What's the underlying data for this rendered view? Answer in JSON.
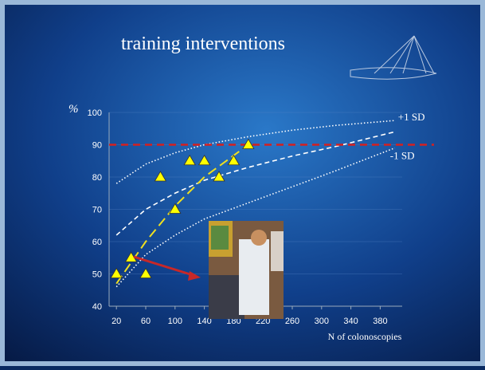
{
  "chart_data": {
    "type": "scatter",
    "title": "training interventions",
    "ylabel": "%",
    "xlabel": "N of colonoscopies",
    "xlim": [
      10,
      410
    ],
    "xticks": [
      20,
      60,
      100,
      140,
      180,
      220,
      260,
      300,
      340,
      380
    ],
    "ylim": [
      40,
      100
    ],
    "yticks": [
      40,
      50,
      60,
      70,
      80,
      90,
      100
    ],
    "grid": true,
    "reference_line": {
      "value": 90,
      "color": "#d42020"
    },
    "curves": [
      {
        "name": "+1 SD",
        "color": "#ffffff",
        "style": "dotted",
        "x": [
          20,
          60,
          100,
          140,
          200,
          260,
          320,
          400
        ],
        "values": [
          78,
          84,
          87.5,
          90,
          92.5,
          94.5,
          96,
          97.5
        ]
      },
      {
        "color": "#ffffff",
        "style": "dashed",
        "x": [
          20,
          60,
          100,
          140,
          200,
          260,
          320,
          400
        ],
        "values": [
          62,
          70,
          75,
          79,
          83,
          86.5,
          89.5,
          94
        ]
      },
      {
        "name": "-1 SD",
        "color": "#ffffff",
        "style": "dotted",
        "x": [
          20,
          60,
          100,
          140,
          200,
          260,
          320,
          400
        ],
        "values": [
          46,
          56,
          62,
          67,
          72,
          77,
          82,
          89
        ]
      },
      {
        "color": "#f0e020",
        "style": "longdash",
        "x": [
          20,
          60,
          100,
          140,
          200
        ],
        "values": [
          47,
          60,
          71,
          80,
          90
        ]
      }
    ],
    "points": {
      "color": "#ffff00",
      "x": [
        20,
        40,
        60,
        80,
        100,
        120,
        140,
        160,
        180,
        200
      ],
      "values": [
        50,
        55,
        50,
        80,
        70,
        85,
        85,
        80,
        85,
        90
      ]
    }
  }
}
